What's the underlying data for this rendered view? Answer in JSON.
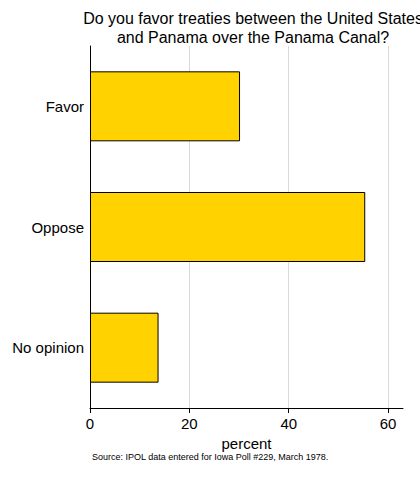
{
  "chart_data": {
    "type": "bar",
    "orientation": "horizontal",
    "title": "Do you favor treaties between the United States\nand Panama over the Panama Canal?",
    "categories": [
      "Favor",
      "Oppose",
      "No opinion"
    ],
    "values": [
      30.2,
      55.4,
      13.8
    ],
    "color": "#ffd200",
    "xlabel": "percent",
    "xlim": [
      0,
      63
    ],
    "xticks": [
      0,
      20,
      40,
      60
    ],
    "grid": true,
    "source": "Source: IPOL data entered for Iowa Poll #229, March 1978."
  }
}
